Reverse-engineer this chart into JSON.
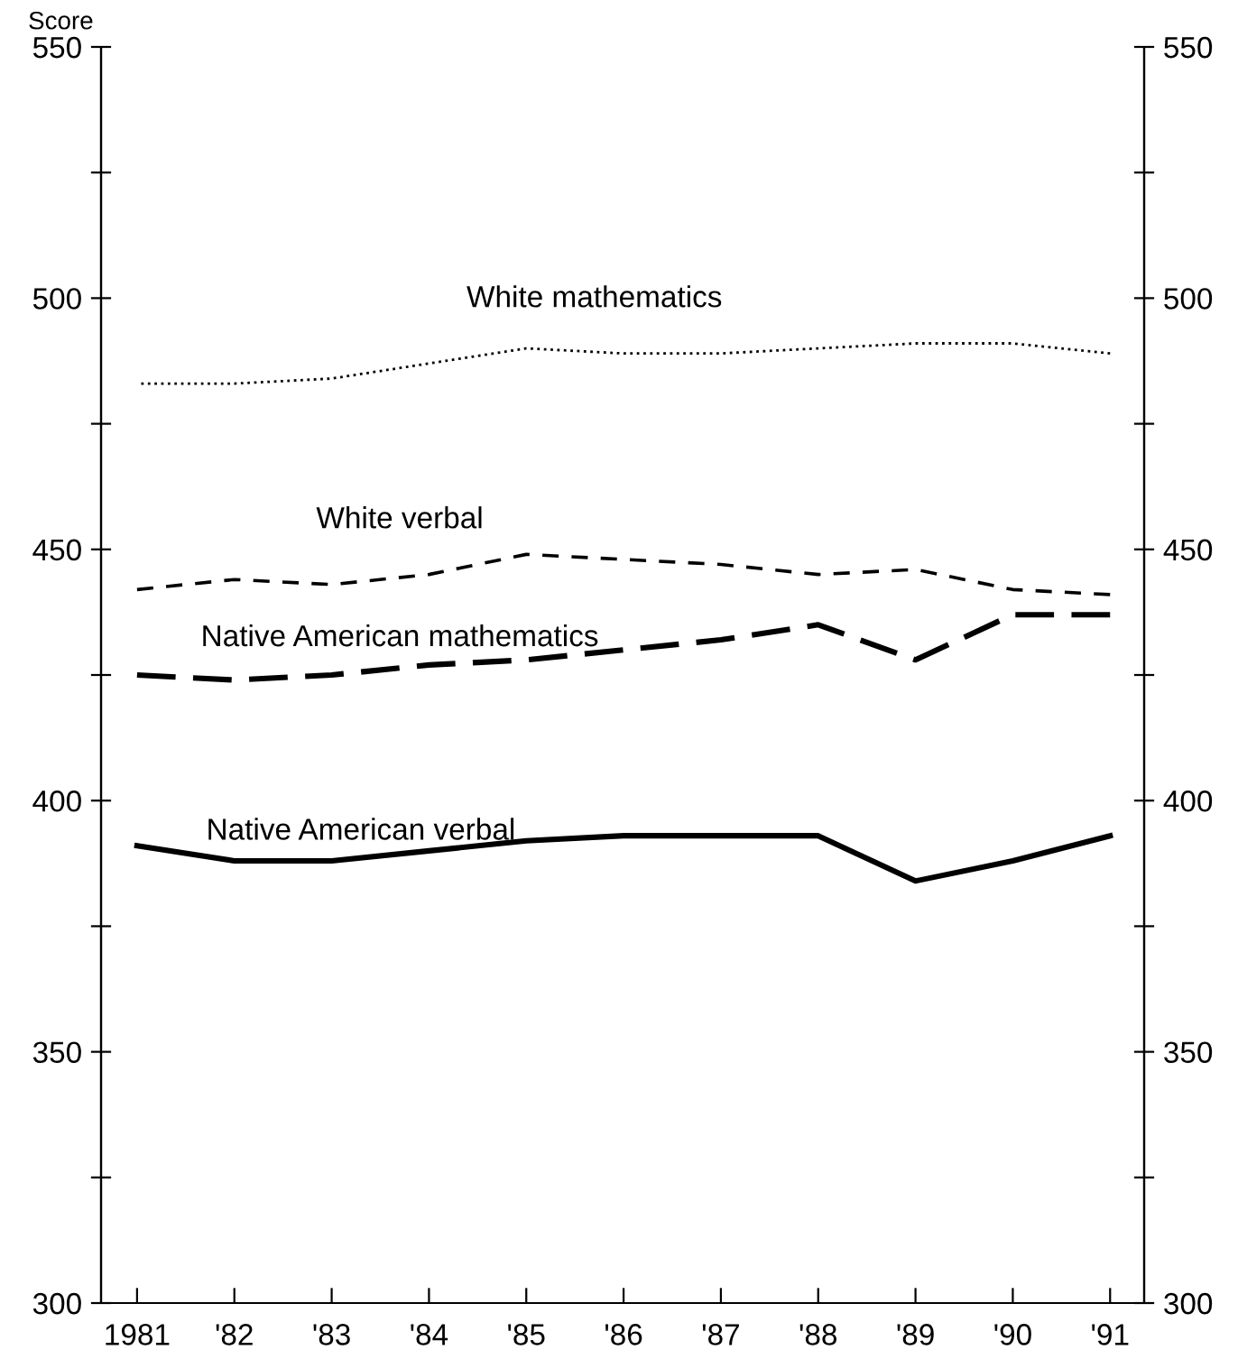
{
  "chart_data": {
    "type": "line",
    "ylabel": "Score",
    "categories": [
      "1981",
      "'82",
      "'83",
      "'84",
      "'85",
      "'86",
      "'87",
      "'88",
      "'89",
      "'90",
      "'91"
    ],
    "series": [
      {
        "name": "White mathematics",
        "color": "#000000",
        "line_style": "dotted",
        "values": [
          483,
          483,
          484,
          487,
          490,
          489,
          489,
          490,
          491,
          491,
          489
        ]
      },
      {
        "name": "White verbal",
        "color": "#000000",
        "line_style": "dashed",
        "values": [
          442,
          444,
          443,
          445,
          449,
          448,
          447,
          445,
          446,
          442,
          441
        ]
      },
      {
        "name": "Native American mathematics",
        "color": "#000000",
        "line_style": "dashed",
        "values": [
          425,
          424,
          425,
          427,
          428,
          430,
          432,
          435,
          428,
          437,
          437
        ]
      },
      {
        "name": "Native American verbal",
        "color": "#000000",
        "line_style": "solid",
        "values": [
          391,
          388,
          388,
          390,
          392,
          393,
          393,
          393,
          384,
          388,
          393
        ]
      }
    ],
    "ylim": [
      300,
      550
    ],
    "yticks": [
      300,
      {
        "value": 325,
        "label": null
      },
      350,
      {
        "value": 375,
        "label": null
      },
      400,
      {
        "value": 425,
        "label": null
      },
      450,
      {
        "value": 475,
        "label": null
      },
      500,
      {
        "value": 525,
        "label": null
      },
      550
    ],
    "y2lim": [
      300,
      550
    ],
    "y2ticks": [
      300,
      {
        "value": 325,
        "label": null
      },
      350,
      {
        "value": 375,
        "label": null
      },
      400,
      {
        "value": 425,
        "label": null
      },
      450,
      {
        "value": 475,
        "label": null
      },
      500,
      {
        "value": 525,
        "label": null
      },
      550
    ],
    "grid": false,
    "legend": false,
    "marker": "none"
  }
}
